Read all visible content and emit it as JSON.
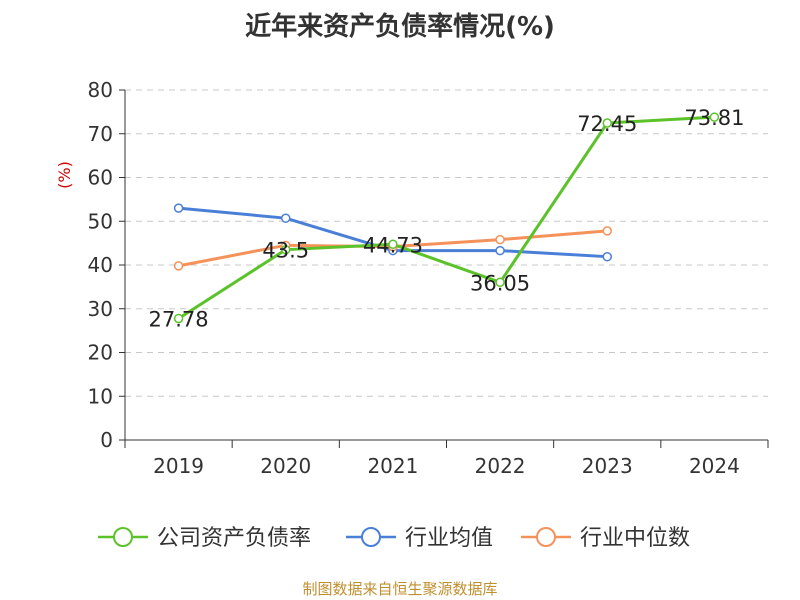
{
  "chart_data": {
    "type": "line",
    "title": "近年来资产负债率情况(%)",
    "ylabel": "(%)",
    "xlabel": "",
    "categories": [
      "2019",
      "2020",
      "2021",
      "2022",
      "2023",
      "2024"
    ],
    "ylim": [
      0,
      80
    ],
    "yticks": [
      0,
      10,
      20,
      30,
      40,
      50,
      60,
      70,
      80
    ],
    "grid": true,
    "legend_position": "bottom",
    "series": [
      {
        "name": "公司资产负债率",
        "color": "#5cc22a",
        "values": [
          27.78,
          43.5,
          44.73,
          36.05,
          72.45,
          73.81
        ],
        "labels": [
          "27.78",
          "43.5",
          "44.73",
          "36.05",
          "72.45",
          "73.81"
        ]
      },
      {
        "name": "行业均值",
        "color": "#4a7fd8",
        "values": [
          53.0,
          50.7,
          43.3,
          43.3,
          41.9,
          null
        ]
      },
      {
        "name": "行业中位数",
        "color": "#f5925a",
        "values": [
          39.8,
          44.5,
          44.2,
          45.8,
          47.8,
          null
        ]
      }
    ]
  },
  "source": "制图数据来自恒生聚源数据库"
}
